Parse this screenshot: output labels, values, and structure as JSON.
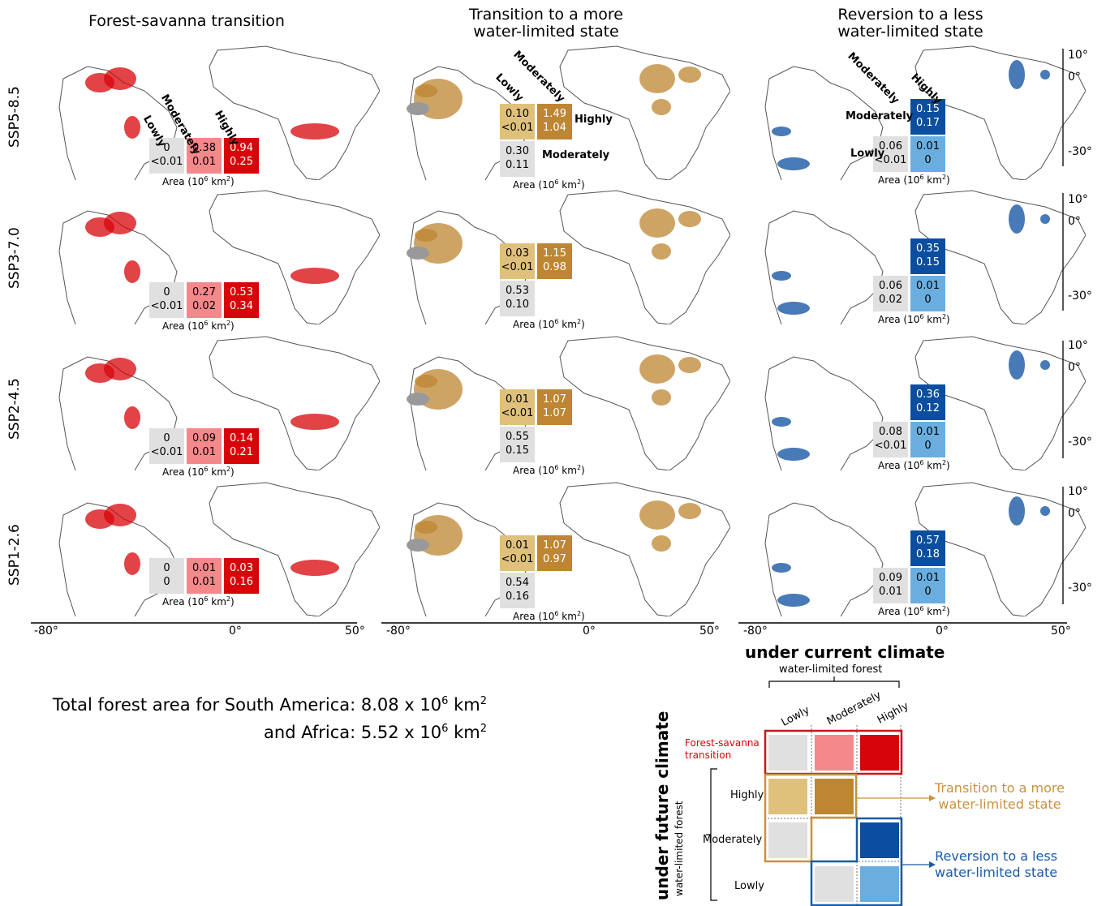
{
  "columns": [
    {
      "title_line1": "Forest-savanna transition",
      "title_line2": ""
    },
    {
      "title_line1": "Transition to a more",
      "title_line2": "water-limited state"
    },
    {
      "title_line1": "Reversion to a less",
      "title_line2": "water-limited state"
    }
  ],
  "rows": [
    {
      "scenario": "SSP5-8.5",
      "fs": {
        "lowly": [
          "0",
          "<0.01"
        ],
        "moderately": [
          "0.38",
          "0.01"
        ],
        "highly": [
          "0.94",
          "0.25"
        ]
      },
      "tm": {
        "hl": [
          "0.10",
          "<0.01"
        ],
        "hm": [
          "1.49",
          "1.04"
        ],
        "ml": [
          "0.30",
          "0.11"
        ]
      },
      "rl": {
        "mh": [
          "0.15",
          "0.17"
        ],
        "lm": [
          "0.06",
          "<0.01"
        ],
        "lh": [
          "0.01",
          "0"
        ]
      }
    },
    {
      "scenario": "SSP3-7.0",
      "fs": {
        "lowly": [
          "0",
          "<0.01"
        ],
        "moderately": [
          "0.27",
          "0.02"
        ],
        "highly": [
          "0.53",
          "0.34"
        ]
      },
      "tm": {
        "hl": [
          "0.03",
          "<0.01"
        ],
        "hm": [
          "1.15",
          "0.98"
        ],
        "ml": [
          "0.53",
          "0.10"
        ]
      },
      "rl": {
        "mh": [
          "0.35",
          "0.15"
        ],
        "lm": [
          "0.06",
          "0.02"
        ],
        "lh": [
          "0.01",
          "0"
        ]
      }
    },
    {
      "scenario": "SSP2-4.5",
      "fs": {
        "lowly": [
          "0",
          "<0.01"
        ],
        "moderately": [
          "0.09",
          "0.01"
        ],
        "highly": [
          "0.14",
          "0.21"
        ]
      },
      "tm": {
        "hl": [
          "0.01",
          "<0.01"
        ],
        "hm": [
          "1.07",
          "1.07"
        ],
        "ml": [
          "0.55",
          "0.15"
        ]
      },
      "rl": {
        "mh": [
          "0.36",
          "0.12"
        ],
        "lm": [
          "0.08",
          "<0.01"
        ],
        "lh": [
          "0.01",
          "0"
        ]
      }
    },
    {
      "scenario": "SSP1-2.6",
      "fs": {
        "lowly": [
          "0",
          "0"
        ],
        "moderately": [
          "0.01",
          "0.01"
        ],
        "highly": [
          "0.03",
          "0.16"
        ]
      },
      "tm": {
        "hl": [
          "0.01",
          "<0.01"
        ],
        "hm": [
          "1.07",
          "0.97"
        ],
        "ml": [
          "0.54",
          "0.16"
        ]
      },
      "rl": {
        "mh": [
          "0.57",
          "0.18"
        ],
        "lm": [
          "0.09",
          "0.01"
        ],
        "lh": [
          "0.01",
          "0"
        ]
      }
    }
  ],
  "labels": {
    "area": "Area (10",
    "area_exp": "6",
    "area_unit": " km",
    "area_exp2": "2",
    "area_close": ")",
    "lowly": "Lowly",
    "moderately": "Moderately",
    "highly": "Highly"
  },
  "x_ticks": [
    "-80°",
    "0°",
    "50°"
  ],
  "lat_ticks": [
    "10°",
    "0°",
    "-30°"
  ],
  "total_line1_a": "Total forest area for South America: 8.08 x 10",
  "total_line1_exp": "6",
  "total_line1_b": " km",
  "total_line1_exp2": "2",
  "total_line2_a": "and Africa: 5.52 x 10",
  "total_line2_exp": "6",
  "total_line2_b": " km",
  "total_line2_exp2": "2",
  "legend": {
    "current_title": "under current climate",
    "current_sub": "water-limited forest",
    "future_title": "under future climate",
    "future_sub": "water-limited forest",
    "col_lowly": "Lowly",
    "col_moderately": "Moderately",
    "col_highly": "Highly",
    "row_highly": "Highly",
    "row_moderately": "Moderately",
    "row_lowly": "Lowly",
    "fs_label_1": "Forest-savanna",
    "fs_label_2": "transition",
    "tm_label_1": "Transition to a more",
    "tm_label_2": "water-limited state",
    "rl_label_1": "Reversion to a less",
    "rl_label_2": "water-limited state"
  },
  "colors": {
    "grey": "#e0e0e0",
    "pink": "#f4888a",
    "red": "#d7040a",
    "tan": "#dfc17c",
    "brown": "#be8632",
    "navy": "#0b4e9f",
    "sky": "#6aaee0",
    "fs_border": "#c8161d",
    "tm_border": "#c8923f",
    "rl_border": "#1a5aa6"
  }
}
